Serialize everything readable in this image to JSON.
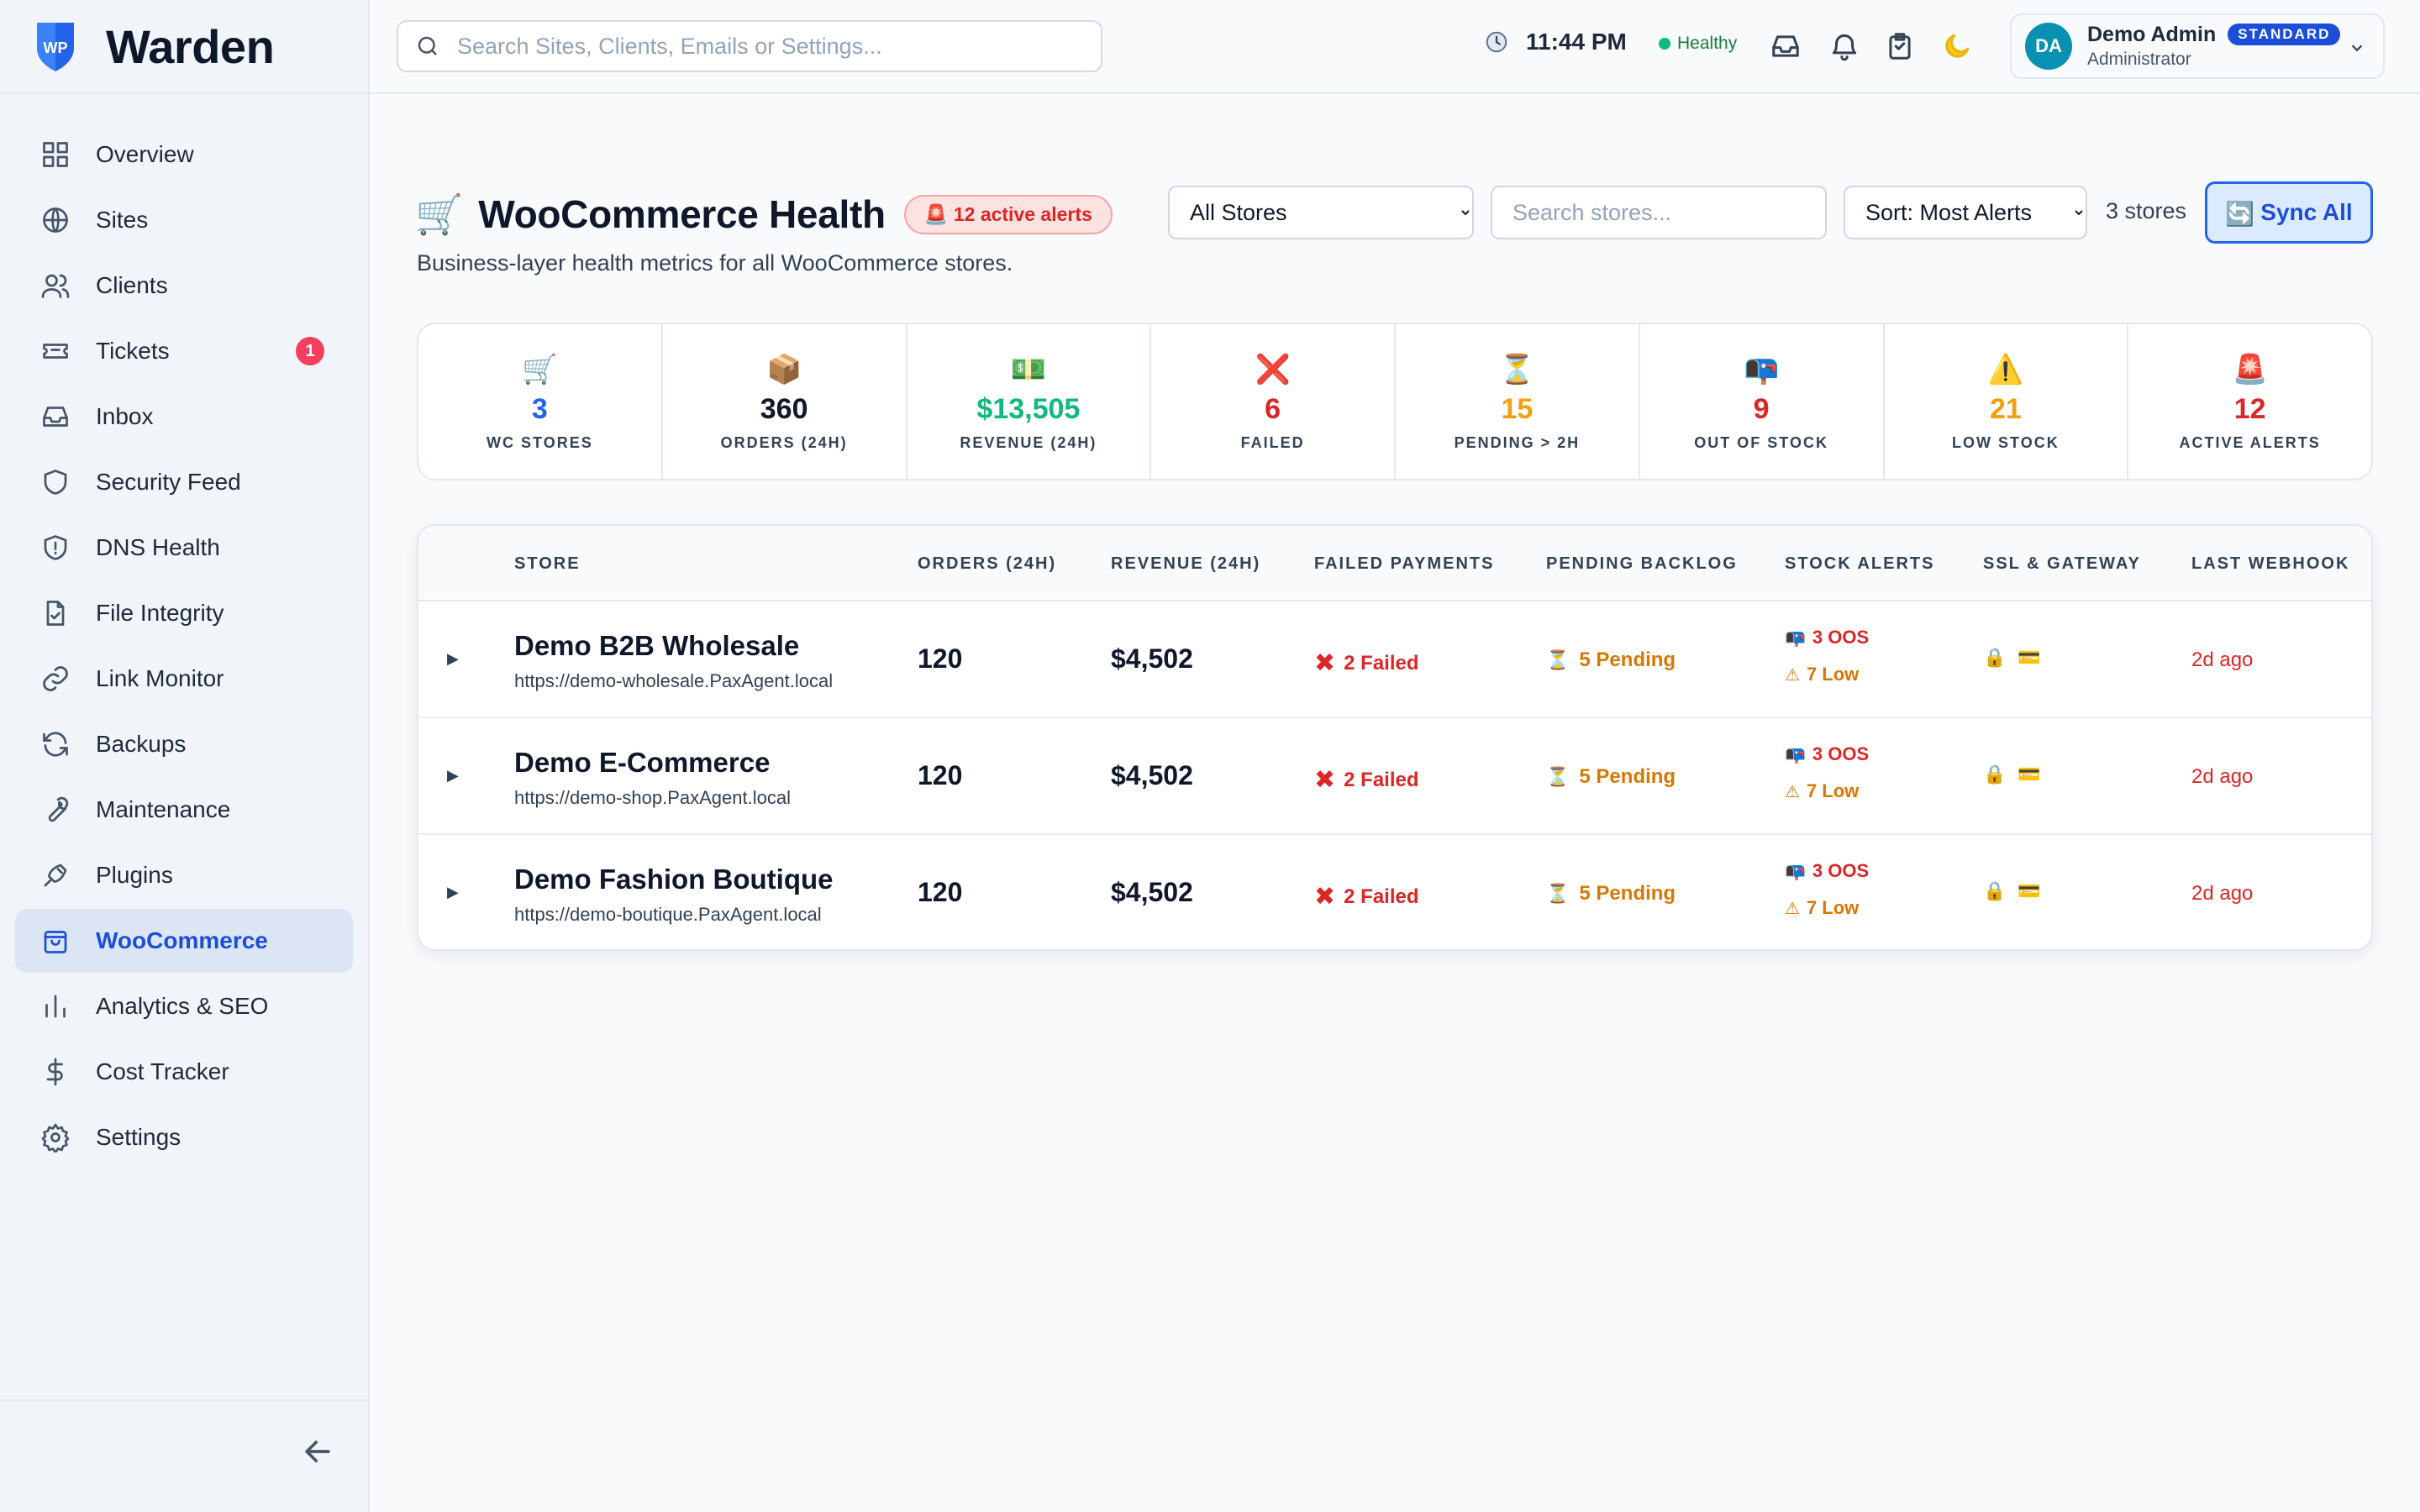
{
  "app": {
    "name": "Warden",
    "logo_text": "WP"
  },
  "search": {
    "placeholder": "Search Sites, Clients, Emails or Settings..."
  },
  "topbar": {
    "time": "11:44 PM",
    "health": "Healthy",
    "icons": [
      "inbox-icon",
      "bell-icon",
      "clipboard-icon",
      "moon-icon"
    ]
  },
  "user": {
    "initials": "DA",
    "name": "Demo Admin",
    "plan": "STANDARD",
    "role": "Administrator"
  },
  "sidebar": {
    "items": [
      {
        "label": "Overview",
        "icon": "grid-icon"
      },
      {
        "label": "Sites",
        "icon": "globe-icon"
      },
      {
        "label": "Clients",
        "icon": "users-icon"
      },
      {
        "label": "Tickets",
        "icon": "ticket-icon",
        "badge": "1"
      },
      {
        "label": "Inbox",
        "icon": "inbox-icon"
      },
      {
        "label": "Security Feed",
        "icon": "shield-icon"
      },
      {
        "label": "DNS Health",
        "icon": "shield-alert-icon"
      },
      {
        "label": "File Integrity",
        "icon": "file-check-icon"
      },
      {
        "label": "Link Monitor",
        "icon": "link-icon"
      },
      {
        "label": "Backups",
        "icon": "refresh-icon"
      },
      {
        "label": "Maintenance",
        "icon": "wrench-icon"
      },
      {
        "label": "Plugins",
        "icon": "plug-icon"
      },
      {
        "label": "WooCommerce",
        "icon": "shopping-bag-icon",
        "active": true
      },
      {
        "label": "Analytics & SEO",
        "icon": "bar-chart-icon"
      },
      {
        "label": "Cost Tracker",
        "icon": "dollar-icon"
      },
      {
        "label": "Settings",
        "icon": "gear-icon"
      }
    ]
  },
  "page": {
    "emoji": "🛒",
    "title": "WooCommerce Health",
    "alert_badge": "🚨 12 active alerts",
    "subtitle": "Business-layer health metrics for all WooCommerce stores.",
    "store_filter": {
      "selected": "All Stores"
    },
    "store_search": {
      "placeholder": "Search stores..."
    },
    "sort": {
      "selected": "Sort: Most Alerts"
    },
    "store_count": "3 stores",
    "sync_label": "Sync All",
    "sync_icon": "🔄"
  },
  "stats": [
    {
      "emoji": "🛒",
      "value": "3",
      "label": "WC STORES",
      "color": "#2563eb"
    },
    {
      "emoji": "📦",
      "value": "360",
      "label": "ORDERS (24H)",
      "color": "#0f172a"
    },
    {
      "emoji": "💵",
      "value": "$13,505",
      "label": "REVENUE (24H)",
      "color": "#10b981"
    },
    {
      "emoji": "❌",
      "value": "6",
      "label": "FAILED",
      "color": "#dc2626"
    },
    {
      "emoji": "⏳",
      "value": "15",
      "label": "PENDING > 2H",
      "color": "#f59e0b"
    },
    {
      "emoji": "📭",
      "value": "9",
      "label": "OUT OF STOCK",
      "color": "#dc2626"
    },
    {
      "emoji": "⚠️",
      "value": "21",
      "label": "LOW STOCK",
      "color": "#f59e0b"
    },
    {
      "emoji": "🚨",
      "value": "12",
      "label": "ACTIVE ALERTS",
      "color": "#dc2626"
    }
  ],
  "table": {
    "columns": [
      "STORE",
      "ORDERS (24H)",
      "REVENUE (24H)",
      "FAILED PAYMENTS",
      "PENDING BACKLOG",
      "STOCK ALERTS",
      "SSL & GATEWAY",
      "LAST WEBHOOK"
    ],
    "rows": [
      {
        "name": "Demo B2B Wholesale",
        "url": "https://demo-wholesale.PaxAgent.local",
        "orders": "120",
        "revenue": "$4,502",
        "failed": "2 Failed",
        "pending": "5 Pending",
        "oos": "3 OOS",
        "low": "7 Low",
        "webhook": "2d ago"
      },
      {
        "name": "Demo E-Commerce",
        "url": "https://demo-shop.PaxAgent.local",
        "orders": "120",
        "revenue": "$4,502",
        "failed": "2 Failed",
        "pending": "5 Pending",
        "oos": "3 OOS",
        "low": "7 Low",
        "webhook": "2d ago"
      },
      {
        "name": "Demo Fashion Boutique",
        "url": "https://demo-boutique.PaxAgent.local",
        "orders": "120",
        "revenue": "$4,502",
        "failed": "2 Failed",
        "pending": "5 Pending",
        "oos": "3 OOS",
        "low": "7 Low",
        "webhook": "2d ago"
      }
    ]
  },
  "colors": {
    "accent": "#1d4ed8",
    "danger": "#dc2626",
    "warning": "#d97706",
    "success": "#10b981"
  }
}
